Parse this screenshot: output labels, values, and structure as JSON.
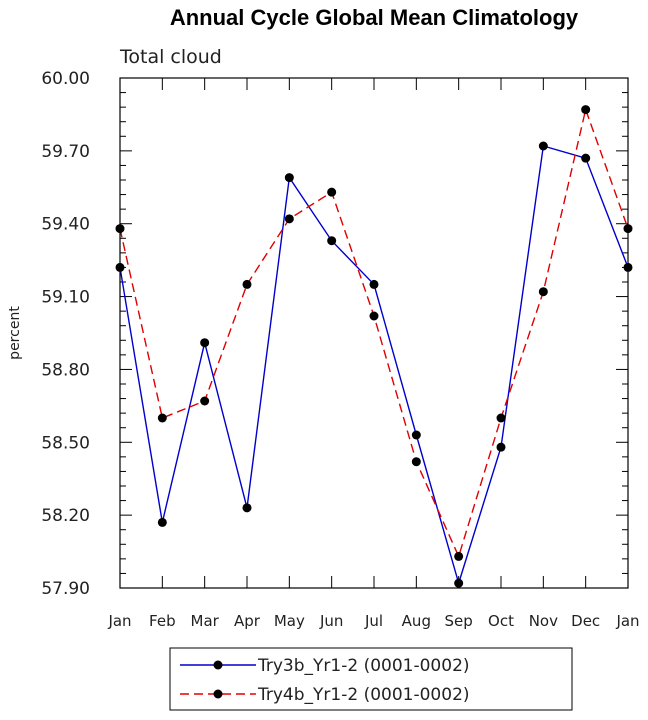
{
  "chart_data": {
    "type": "line",
    "title": "Annual Cycle Global Mean Climatology",
    "subtitle": "Total cloud",
    "xlabel": "",
    "ylabel": "percent",
    "ylim": [
      57.9,
      60.0
    ],
    "yticks": [
      "57.90",
      "58.20",
      "58.50",
      "58.80",
      "59.10",
      "59.40",
      "59.70",
      "60.00"
    ],
    "categories": [
      "Jan",
      "Feb",
      "Mar",
      "Apr",
      "May",
      "Jun",
      "Jul",
      "Aug",
      "Sep",
      "Oct",
      "Nov",
      "Dec",
      "Jan"
    ],
    "legend_position": "bottom",
    "grid": false,
    "series": [
      {
        "name": "Try3b_Yr1-2 (0001-0002)",
        "color": "#0000cc",
        "dash": "solid",
        "values": [
          59.22,
          58.17,
          58.91,
          58.23,
          59.59,
          59.33,
          59.15,
          58.53,
          57.92,
          58.48,
          59.72,
          59.67,
          59.22
        ]
      },
      {
        "name": "Try4b_Yr1-2 (0001-0002)",
        "color": "#e00000",
        "dash": "dashed",
        "values": [
          59.38,
          58.6,
          58.67,
          59.15,
          59.42,
          59.53,
          59.02,
          58.42,
          58.03,
          58.6,
          59.12,
          59.87,
          59.38
        ]
      }
    ]
  }
}
